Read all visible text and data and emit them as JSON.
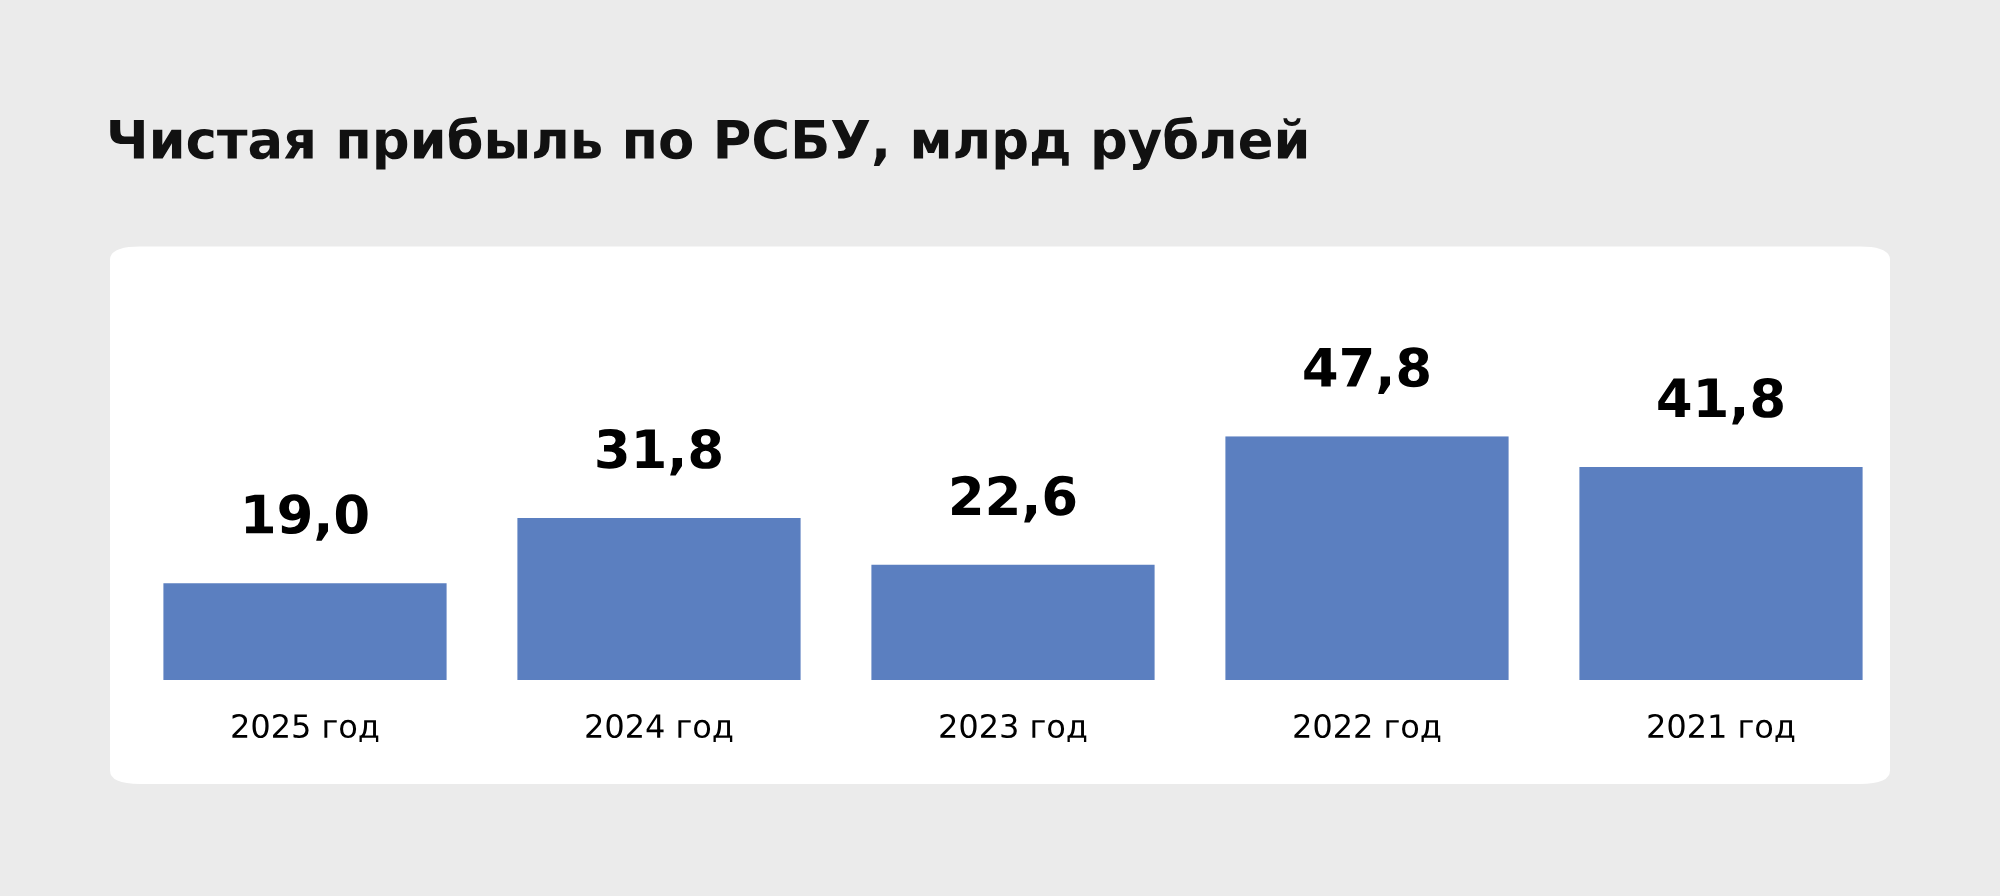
{
  "chart_data": {
    "type": "bar",
    "title": "Чистая прибыль по РСБУ, млрд рублей",
    "categories": [
      "2025 год",
      "2024 год",
      "2023 год",
      "2022 год",
      "2021 год"
    ],
    "values": [
      19.0,
      31.8,
      22.6,
      47.8,
      41.8
    ],
    "value_labels": [
      "19,0",
      "31,8",
      "22,6",
      "47,8",
      "41,8"
    ],
    "color": "#5b7fc0",
    "grid": false,
    "legend": false
  }
}
